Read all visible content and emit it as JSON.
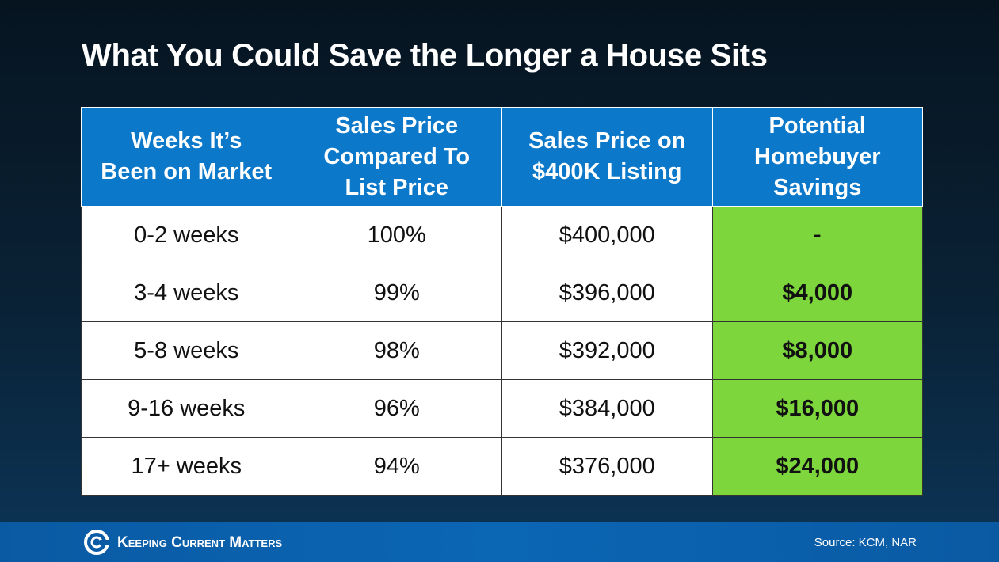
{
  "header": {
    "title": "What You Could Save the Longer a House Sits"
  },
  "table": {
    "headers": [
      [
        "Weeks It’s",
        "Been on Market"
      ],
      [
        "Sales Price",
        "Compared To",
        "List Price"
      ],
      [
        "Sales Price on",
        "$400K Listing"
      ],
      [
        "Potential",
        "Homebuyer",
        "Savings"
      ]
    ],
    "rows": [
      [
        "0-2 weeks",
        "100%",
        "$400,000",
        "-"
      ],
      [
        "3-4 weeks",
        "99%",
        "$396,000",
        "$4,000"
      ],
      [
        "5-8 weeks",
        "98%",
        "$392,000",
        "$8,000"
      ],
      [
        "9-16 weeks",
        "96%",
        "$384,000",
        "$16,000"
      ],
      [
        "17+ weeks",
        "94%",
        "$376,000",
        "$24,000"
      ]
    ]
  },
  "footer": {
    "brand": "Keeping Current Matters",
    "source": "Source: KCM, NAR"
  }
}
